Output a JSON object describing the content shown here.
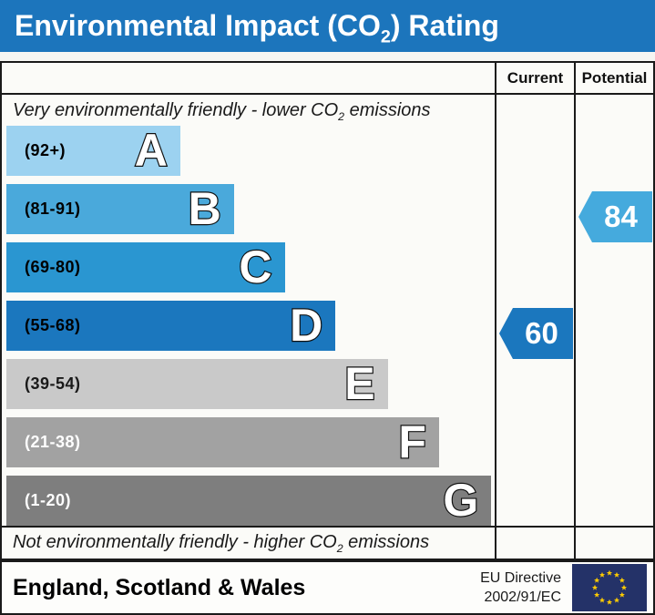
{
  "title": {
    "pre": "Environmental Impact (CO",
    "sub": "2",
    "post": ") Rating"
  },
  "header": {
    "current": "Current",
    "potential": "Potential"
  },
  "notes": {
    "top": {
      "pre": "Very environmentally friendly - lower CO",
      "sub": "2",
      "post": " emissions"
    },
    "bottom": {
      "pre": "Not environmentally friendly - higher CO",
      "sub": "2",
      "post": " emissions"
    }
  },
  "bands": [
    {
      "letter": "A",
      "range": "(92+)",
      "color": "#9cd2f0",
      "text_color": "#000000",
      "width_pct": 35.6
    },
    {
      "letter": "B",
      "range": "(81-91)",
      "color": "#4aa9db",
      "text_color": "#000000",
      "width_pct": 46.6
    },
    {
      "letter": "C",
      "range": "(69-80)",
      "color": "#2a96d1",
      "text_color": "#000000",
      "width_pct": 57.0
    },
    {
      "letter": "D",
      "range": "(55-68)",
      "color": "#1b77be",
      "text_color": "#000000",
      "width_pct": 67.4
    },
    {
      "letter": "E",
      "range": "(39-54)",
      "color": "#c9c9c9",
      "text_color": "#1a1a1a",
      "width_pct": 78.1
    },
    {
      "letter": "F",
      "range": "(21-38)",
      "color": "#a2a2a2",
      "text_color": "#ffffff",
      "width_pct": 88.6
    },
    {
      "letter": "G",
      "range": "(1-20)",
      "color": "#7e7e7e",
      "text_color": "#ffffff",
      "width_pct": 99.3
    }
  ],
  "current": {
    "value": "60",
    "band_index": 3,
    "color": "#1b77be"
  },
  "potential": {
    "value": "84",
    "band_index": 1,
    "color": "#45aadd"
  },
  "footer": {
    "region": "England, Scotland & Wales",
    "directive_line1": "EU Directive",
    "directive_line2": "2002/91/EC"
  },
  "colors": {
    "title_bg": "#1c75bc",
    "title_text": "#ffffff",
    "border": "#1a1a1a",
    "eu_flag_bg": "#243268",
    "eu_flag_star": "#ffcc00"
  },
  "chart_data": {
    "type": "bar",
    "title": "Environmental Impact (CO2) Rating",
    "categories": [
      "A",
      "B",
      "C",
      "D",
      "E",
      "F",
      "G"
    ],
    "band_ranges": [
      "92+",
      "81-91",
      "69-80",
      "55-68",
      "39-54",
      "21-38",
      "1-20"
    ],
    "band_colors": [
      "#9cd2f0",
      "#4aa9db",
      "#2a96d1",
      "#1b77be",
      "#c9c9c9",
      "#a2a2a2",
      "#7e7e7e"
    ],
    "bar_width_pct": [
      35.6,
      46.6,
      57.0,
      67.4,
      78.1,
      88.6,
      99.3
    ],
    "current_rating": 60,
    "current_band": "D",
    "potential_rating": 84,
    "potential_band": "B",
    "top_note": "Very environmentally friendly - lower CO2 emissions",
    "bottom_note": "Not environmentally friendly - higher CO2 emissions",
    "region": "England, Scotland & Wales",
    "directive": "EU Directive 2002/91/EC",
    "legend_position": "none",
    "grid": false
  }
}
